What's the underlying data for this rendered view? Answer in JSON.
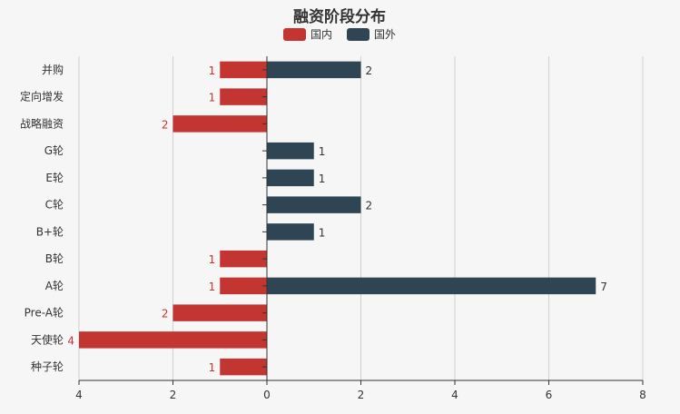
{
  "chart_data": {
    "type": "bar",
    "orientation": "horizontal",
    "title": "融资阶段分布",
    "legend_position": "top-center",
    "categories": [
      "种子轮",
      "天使轮",
      "Pre-A轮",
      "A轮",
      "B轮",
      "B+轮",
      "C轮",
      "E轮",
      "G轮",
      "战略融资",
      "定向增发",
      "并购"
    ],
    "series": [
      {
        "name": "国内",
        "color": "#c23531",
        "values": [
          1,
          4,
          2,
          1,
          1,
          null,
          null,
          null,
          null,
          2,
          1,
          1
        ],
        "direction": "negative"
      },
      {
        "name": "国外",
        "color": "#2f4554",
        "values": [
          null,
          null,
          null,
          7,
          null,
          1,
          2,
          1,
          1,
          null,
          null,
          2
        ],
        "direction": "positive"
      }
    ],
    "xlim": [
      -4,
      8
    ],
    "x_ticks": [
      -4,
      -2,
      0,
      2,
      4,
      6,
      8
    ],
    "x_tick_labels": [
      "4",
      "2",
      "0",
      "2",
      "4",
      "6",
      "8"
    ],
    "grid": true
  }
}
